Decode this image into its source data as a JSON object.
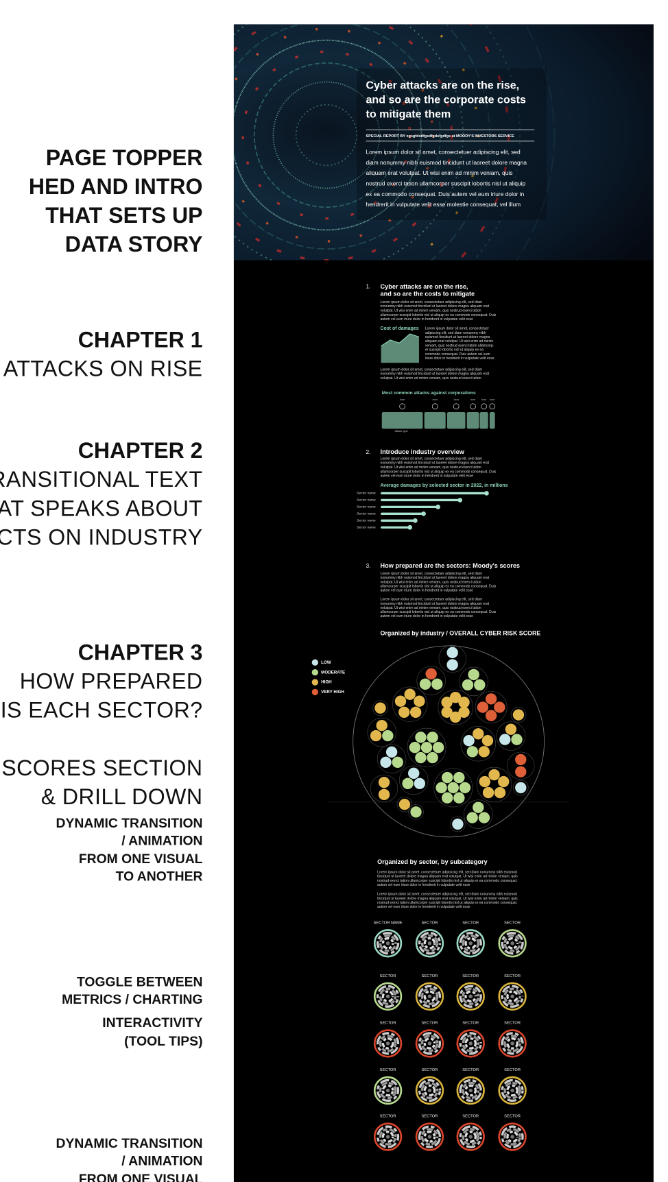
{
  "annotations": [
    {
      "lines": [
        "PAGE TOPPER",
        "HED AND INTRO",
        "THAT SETS UP",
        "DATA STORY"
      ]
    },
    {
      "lines": [
        "CHAPTER 1",
        "ATTACKS ON RISE"
      ]
    },
    {
      "lines": [
        "CHAPTER 2",
        "TRANSITIONAL TEXT",
        "THAT SPEAKS ABOUT",
        "FECTS ON INDUSTRY"
      ]
    },
    {
      "lines": [
        "CHAPTER 3",
        "HOW PREPARED",
        "IS EACH SECTOR?"
      ]
    },
    {
      "lines": [
        "SCORES SECTION",
        "& DRILL DOWN"
      ]
    },
    {
      "lines": [
        "DYNAMIC TRANSITION",
        "/ ANIMATION",
        "FROM ONE VISUAL",
        "TO ANOTHER"
      ]
    },
    {
      "lines": [
        "TOGGLE BETWEEN",
        "METRICS / CHARTING"
      ]
    },
    {
      "lines": [
        "INTERACTIVITY",
        "(TOOL TIPS)"
      ]
    },
    {
      "lines": [
        "DYNAMIC TRANSITION",
        "/ ANIMATION",
        "FROM ONE VISUAL"
      ]
    }
  ],
  "hero": {
    "title": [
      "Cyber attacks are on the rise,",
      "and so are the corporate costs",
      "to mitigate them"
    ],
    "byline": "SPECIAL REPORT BY xgsgfdsdfgsdfgdsfgdfgs at MOODY'S INVESTORS SERVICE",
    "intro": [
      "Lorem ipsum dolor sit amet, consectetuer adipiscing elit, sed",
      "diam nonummy nibh euismod tincidunt ut laoreet dolore magna",
      "aliquam erat volutpat. Ut wisi enim ad minim veniam, quis",
      "nostrud exerci tation ullamcorper suscipit lobortis nisl ut aliquip",
      "ex ea commodo consequat. Duis autem vel eum iriure dolor in",
      "hendrerit in vulputate velit esse molestie consequat, vel illum"
    ]
  },
  "section1": {
    "number": "1.",
    "title": [
      "Cyber attacks are on the rise,",
      "and so are the costs to mitigate"
    ],
    "body": [
      "Lorem ipsum dolor sit amet, consectetuer adipiscing elit, sed diam",
      "nonummy nibh euismod tincidunt ut laoreet dolore magna aliquam erat",
      "volutpat. Ut wisi enim ad minim veniam, quis nostrud exerci tation",
      "ullamcorper suscipit lobortis nisl ut aliquip ex ea commodo consequat. Duis",
      "autem vel eum iriure dolor in hendrerit in vulputate velit esse"
    ],
    "chart_title": "Cost of damages",
    "chart_note": [
      "Lorem ipsum dolor sit amet, consectetuer",
      "adipiscing elit, sed diam nonummy nibh",
      "euismod tincidunt ut laoreet dolore magna",
      "aliquam erat volutpat. Ut wisi enim ad minim",
      "veniam, quis nostrud exerci tation ullamcorp-",
      "er suscipit lobortis nisl ut aliquip ex ea",
      "commodo consequat. Duis autem vel eum",
      "iriure dolor in hendrerit in vulputate velit esse"
    ],
    "body2": [
      "Lorem ipsum dolor sit amet, consectetuer adipiscing elit, sed diam",
      "nonummy nibh euismod tincidunt ut laoreet dolore magna aliquam erat",
      "volutpat. Ut wisi enim ad minim veniam, quis nostrud exerci tation"
    ],
    "attacks_title": "Most common attacks against corporations",
    "icon_labels": [
      "Icon",
      "Icon",
      "Icon",
      "Icon",
      "Icon",
      "Icon"
    ],
    "axis_label": "Attack type"
  },
  "section2": {
    "number": "2.",
    "title": "Introduce industry overview",
    "body": [
      "Lorem ipsum dolor sit amet, consectetuer adipiscing elit, sed diam",
      "nonummy nibh euismod tincidunt ut laoreet dolore magna aliquam erat",
      "volutpat. Ut wisi enim ad minim veniam, quis nostrud exerci tation",
      "ullamcorper suscipit lobortis nisl ut aliquip ex ea commodo consequat. Duis",
      "autem vel eum iriure dolor in hendrerit in vulputate velit esse"
    ],
    "chart_title": "Average damages by selected sector in 2022, in millions",
    "sectors": [
      "Sector name",
      "Sector name",
      "Sector name",
      "Sector name",
      "Sector name",
      "Sector name"
    ]
  },
  "section3": {
    "number": "3.",
    "title": "How prepared are the sectors: Moody's scores",
    "body": [
      "Lorem ipsum dolor sit amet, consectetuer adipiscing elit, sed diam",
      "nonummy nibh euismod tincidunt ut laoreet dolore magna aliquam erat",
      "volutpat. Ut wisi enim ad minim veniam, quis nostrud exerci tation",
      "ullamcorper suscipit lobortis nisl ut aliquip ex ea commodo consequat. Duis",
      "autem vel eum iriure dolor in hendrerit in vulputate velit esse"
    ],
    "body2": [
      "Lorem ipsum dolor sit amet, consectetuer adipiscing elit, sed diam",
      "nonummy nibh euismod tincidunt ut laoreet dolore magna aliquam erat",
      "volutpat. Ut wisi enim ad minim veniam, quis nostrud exerci tation",
      "ullamcorper suscipit lobortis nisl ut aliquip ex ea commodo consequat. Duis",
      "autem vel eum iriure dolor in hendrerit in vulputate velit esse"
    ],
    "chart_title": "Organized by industry / OVERALL CYBER RISK SCORE",
    "legend": [
      {
        "label": "LOW",
        "color": "#c7e6ea"
      },
      {
        "label": "MODERATE",
        "color": "#b6d98e"
      },
      {
        "label": "HIGH",
        "color": "#e2b84e"
      },
      {
        "label": "VERY HIGH",
        "color": "#df6038"
      }
    ]
  },
  "section4": {
    "title": "Organized by sector, by subcategory",
    "body": [
      "Lorem ipsum dolor sit amet, consectetuer adipiscing elit, sed diam nonummy nibh euismod",
      "tincidunt ut laoreet dolore magna aliquam erat volutpat. Ut wisi enim ad minim veniam, quis",
      "nostrud exerci tation ullamcorper suscipit lobortis nisl ut aliquip ex ea commodo consequat.",
      "autem vel eum iriure dolor in hendrerit in vulputate velit esse"
    ],
    "body2": [
      "Lorem ipsum dolor sit amet, consectetuer adipiscing elit, sed diam nonummy nibh euismod",
      "tincidunt ut laoreet dolore magna aliquam erat volutpat. Ut wisi enim ad minim veniam, quis",
      "nostrud exerci tation ullamcorper suscipit lobortis nisl ut aliquip ex ea commodo consequat.",
      "autem vel eum iriure dolor in hendrerit in vulputate velit esse"
    ],
    "labels": [
      "SECTOR NAME",
      "SECTOR",
      "SECTOR",
      "SECTOR",
      "SECTOR",
      "SECTOR",
      "SECTOR",
      "SECTOR",
      "SECTOR",
      "SECTOR",
      "SECTOR",
      "SECTOR",
      "SECTOR",
      "SECTOR",
      "SECTOR",
      "SECTOR",
      "SECTOR",
      "SECTOR",
      "SECTOR",
      "SECTOR"
    ]
  }
}
